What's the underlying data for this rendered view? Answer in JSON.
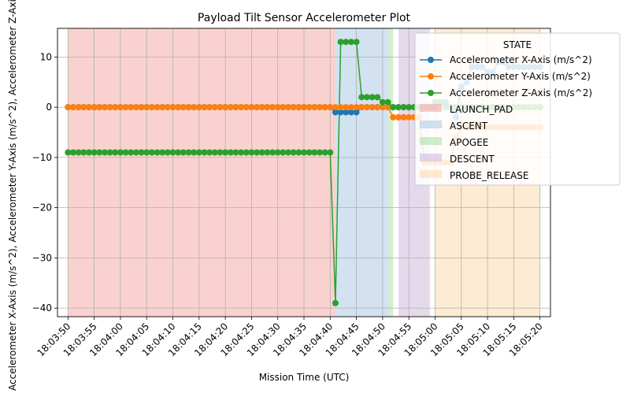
{
  "chart_data": {
    "type": "line",
    "title": "Payload Tilt Sensor Accelerometer Plot",
    "xlabel": "Mission Time (UTC)",
    "ylabel": "Accelerometer X-Axis (m/s^2), Accelerometer Y-Axis (m/s^2), Accelerometer Z-Axis (m/s^2)",
    "x_start": "18:03:50",
    "x_ticks": [
      "18:03:50",
      "18:03:55",
      "18:04:00",
      "18:04:05",
      "18:04:10",
      "18:04:15",
      "18:04:20",
      "18:04:25",
      "18:04:30",
      "18:04:35",
      "18:04:40",
      "18:04:45",
      "18:04:50",
      "18:04:55",
      "18:05:00",
      "18:05:05",
      "18:05:10",
      "18:05:15",
      "18:05:20"
    ],
    "xlim": [
      "18:03:48",
      "18:05:22"
    ],
    "ylim": [
      -41.7,
      15.7
    ],
    "y_ticks": [
      -40,
      -30,
      -20,
      -10,
      0,
      10
    ],
    "grid": true,
    "legend": {
      "title": "STATE",
      "placement": "upper right"
    },
    "states": [
      {
        "name": "LAUNCH_PAD",
        "start": "18:03:50",
        "end": "18:04:41",
        "color": "#f4a6a1"
      },
      {
        "name": "ASCENT",
        "start": "18:04:41",
        "end": "18:04:51",
        "color": "#a8c6e2"
      },
      {
        "name": "APOGEE",
        "start": "18:04:51",
        "end": "18:04:52",
        "color": "#a6dfa0"
      },
      {
        "name": "DESCENT",
        "start": "18:04:53",
        "end": "18:04:59",
        "color": "#cbb6da"
      },
      {
        "name": "PROBE_RELEASE",
        "start": "18:05:00",
        "end": "18:05:20",
        "color": "#fdd7a8"
      }
    ],
    "series": [
      {
        "name": "Accelerometer X-Axis (m/s^2)",
        "color": "#1f77b4",
        "x": [
          "18:03:50",
          "18:03:51",
          "18:03:52",
          "18:03:53",
          "18:03:54",
          "18:03:55",
          "18:03:56",
          "18:03:57",
          "18:03:58",
          "18:03:59",
          "18:04:00",
          "18:04:01",
          "18:04:02",
          "18:04:03",
          "18:04:04",
          "18:04:05",
          "18:04:06",
          "18:04:07",
          "18:04:08",
          "18:04:09",
          "18:04:10",
          "18:04:11",
          "18:04:12",
          "18:04:13",
          "18:04:14",
          "18:04:15",
          "18:04:16",
          "18:04:17",
          "18:04:18",
          "18:04:19",
          "18:04:20",
          "18:04:21",
          "18:04:22",
          "18:04:23",
          "18:04:24",
          "18:04:25",
          "18:04:26",
          "18:04:27",
          "18:04:28",
          "18:04:29",
          "18:04:30",
          "18:04:31",
          "18:04:32",
          "18:04:33",
          "18:04:34",
          "18:04:35",
          "18:04:36",
          "18:04:37",
          "18:04:38",
          "18:04:39",
          "18:04:40",
          "18:04:41",
          "18:04:42",
          "18:04:43",
          "18:04:44",
          "18:04:45",
          "18:04:46",
          "18:04:47",
          "18:04:48",
          "18:04:49",
          "18:04:50",
          "18:04:51",
          "18:04:52",
          "18:04:53",
          "18:04:54",
          "18:04:55",
          "18:04:56",
          "18:04:57",
          "18:04:58",
          "18:04:59",
          "18:05:00",
          "18:05:01",
          "18:05:02",
          "18:05:03",
          "18:05:04",
          "18:05:05",
          "18:05:06",
          "18:05:07",
          "18:05:08",
          "18:05:09",
          "18:05:10",
          "18:05:11",
          "18:05:12",
          "18:05:13",
          "18:05:14",
          "18:05:15",
          "18:05:16",
          "18:05:17",
          "18:05:18",
          "18:05:19",
          "18:05:20"
        ],
        "values": [
          0,
          0,
          0,
          0,
          0,
          0,
          0,
          0,
          0,
          0,
          0,
          0,
          0,
          0,
          0,
          0,
          0,
          0,
          0,
          0,
          0,
          0,
          0,
          0,
          0,
          0,
          0,
          0,
          0,
          0,
          0,
          0,
          0,
          0,
          0,
          0,
          0,
          0,
          0,
          0,
          0,
          0,
          0,
          0,
          0,
          0,
          0,
          0,
          0,
          0,
          0,
          -1,
          -1,
          -1,
          -1,
          -1,
          0,
          0,
          0,
          0,
          0,
          0,
          0,
          0,
          0,
          0,
          0,
          0,
          0,
          0,
          0,
          1,
          1,
          0,
          -2,
          4,
          5,
          8,
          8,
          8,
          7,
          7,
          9,
          9,
          8,
          8,
          8,
          8,
          8,
          8,
          8
        ]
      },
      {
        "name": "Accelerometer Y-Axis (m/s^2)",
        "color": "#ff7f0e",
        "x": [
          "18:03:50",
          "18:03:51",
          "18:03:52",
          "18:03:53",
          "18:03:54",
          "18:03:55",
          "18:03:56",
          "18:03:57",
          "18:03:58",
          "18:03:59",
          "18:04:00",
          "18:04:01",
          "18:04:02",
          "18:04:03",
          "18:04:04",
          "18:04:05",
          "18:04:06",
          "18:04:07",
          "18:04:08",
          "18:04:09",
          "18:04:10",
          "18:04:11",
          "18:04:12",
          "18:04:13",
          "18:04:14",
          "18:04:15",
          "18:04:16",
          "18:04:17",
          "18:04:18",
          "18:04:19",
          "18:04:20",
          "18:04:21",
          "18:04:22",
          "18:04:23",
          "18:04:24",
          "18:04:25",
          "18:04:26",
          "18:04:27",
          "18:04:28",
          "18:04:29",
          "18:04:30",
          "18:04:31",
          "18:04:32",
          "18:04:33",
          "18:04:34",
          "18:04:35",
          "18:04:36",
          "18:04:37",
          "18:04:38",
          "18:04:39",
          "18:04:40",
          "18:04:41",
          "18:04:42",
          "18:04:43",
          "18:04:44",
          "18:04:45",
          "18:04:46",
          "18:04:47",
          "18:04:48",
          "18:04:49",
          "18:04:50",
          "18:04:51",
          "18:04:52",
          "18:04:53",
          "18:04:54",
          "18:04:55",
          "18:04:56",
          "18:04:57",
          "18:04:58",
          "18:04:59",
          "18:05:00",
          "18:05:01",
          "18:05:02",
          "18:05:03",
          "18:05:04",
          "18:05:05",
          "18:05:06",
          "18:05:07",
          "18:05:08",
          "18:05:09",
          "18:05:10",
          "18:05:11",
          "18:05:12",
          "18:05:13",
          "18:05:14",
          "18:05:15",
          "18:05:16",
          "18:05:17",
          "18:05:18",
          "18:05:19",
          "18:05:20"
        ],
        "values": [
          0,
          0,
          0,
          0,
          0,
          0,
          0,
          0,
          0,
          0,
          0,
          0,
          0,
          0,
          0,
          0,
          0,
          0,
          0,
          0,
          0,
          0,
          0,
          0,
          0,
          0,
          0,
          0,
          0,
          0,
          0,
          0,
          0,
          0,
          0,
          0,
          0,
          0,
          0,
          0,
          0,
          0,
          0,
          0,
          0,
          0,
          0,
          0,
          0,
          0,
          0,
          0,
          0,
          0,
          0,
          0,
          0,
          0,
          0,
          0,
          0,
          0,
          -2,
          -2,
          -2,
          -2,
          -2,
          -2,
          -11,
          -11,
          -11,
          -11,
          -11,
          -11,
          -6,
          -4,
          -4,
          -4,
          -4,
          -4,
          -4,
          -4,
          -4,
          -4,
          -4,
          -4,
          -4,
          -4,
          -4,
          -4,
          -4
        ]
      },
      {
        "name": "Accelerometer Z-Axis (m/s^2)",
        "color": "#2ca02c",
        "x": [
          "18:03:50",
          "18:03:51",
          "18:03:52",
          "18:03:53",
          "18:03:54",
          "18:03:55",
          "18:03:56",
          "18:03:57",
          "18:03:58",
          "18:03:59",
          "18:04:00",
          "18:04:01",
          "18:04:02",
          "18:04:03",
          "18:04:04",
          "18:04:05",
          "18:04:06",
          "18:04:07",
          "18:04:08",
          "18:04:09",
          "18:04:10",
          "18:04:11",
          "18:04:12",
          "18:04:13",
          "18:04:14",
          "18:04:15",
          "18:04:16",
          "18:04:17",
          "18:04:18",
          "18:04:19",
          "18:04:20",
          "18:04:21",
          "18:04:22",
          "18:04:23",
          "18:04:24",
          "18:04:25",
          "18:04:26",
          "18:04:27",
          "18:04:28",
          "18:04:29",
          "18:04:30",
          "18:04:31",
          "18:04:32",
          "18:04:33",
          "18:04:34",
          "18:04:35",
          "18:04:36",
          "18:04:37",
          "18:04:38",
          "18:04:39",
          "18:04:40",
          "18:04:41",
          "18:04:42",
          "18:04:43",
          "18:04:44",
          "18:04:45",
          "18:04:46",
          "18:04:47",
          "18:04:48",
          "18:04:49",
          "18:04:50",
          "18:04:51",
          "18:04:52",
          "18:04:53",
          "18:04:54",
          "18:04:55",
          "18:04:56",
          "18:04:57",
          "18:04:58",
          "18:04:59",
          "18:05:00",
          "18:05:01",
          "18:05:02",
          "18:05:03",
          "18:05:04",
          "18:05:05",
          "18:05:06",
          "18:05:07",
          "18:05:08",
          "18:05:09",
          "18:05:10",
          "18:05:11",
          "18:05:12",
          "18:05:13",
          "18:05:14",
          "18:05:15",
          "18:05:16",
          "18:05:17",
          "18:05:18",
          "18:05:19",
          "18:05:20"
        ],
        "values": [
          -9,
          -9,
          -9,
          -9,
          -9,
          -9,
          -9,
          -9,
          -9,
          -9,
          -9,
          -9,
          -9,
          -9,
          -9,
          -9,
          -9,
          -9,
          -9,
          -9,
          -9,
          -9,
          -9,
          -9,
          -9,
          -9,
          -9,
          -9,
          -9,
          -9,
          -9,
          -9,
          -9,
          -9,
          -9,
          -9,
          -9,
          -9,
          -9,
          -9,
          -9,
          -9,
          -9,
          -9,
          -9,
          -9,
          -9,
          -9,
          -9,
          -9,
          -9,
          -39,
          13,
          13,
          13,
          13,
          2,
          2,
          2,
          2,
          1,
          1,
          0,
          0,
          0,
          0,
          0,
          0,
          0,
          0,
          1,
          1,
          0,
          0,
          0,
          0,
          0,
          0,
          0,
          0,
          0,
          0,
          0,
          0,
          0,
          0,
          0,
          0,
          0,
          0,
          0
        ]
      }
    ]
  }
}
